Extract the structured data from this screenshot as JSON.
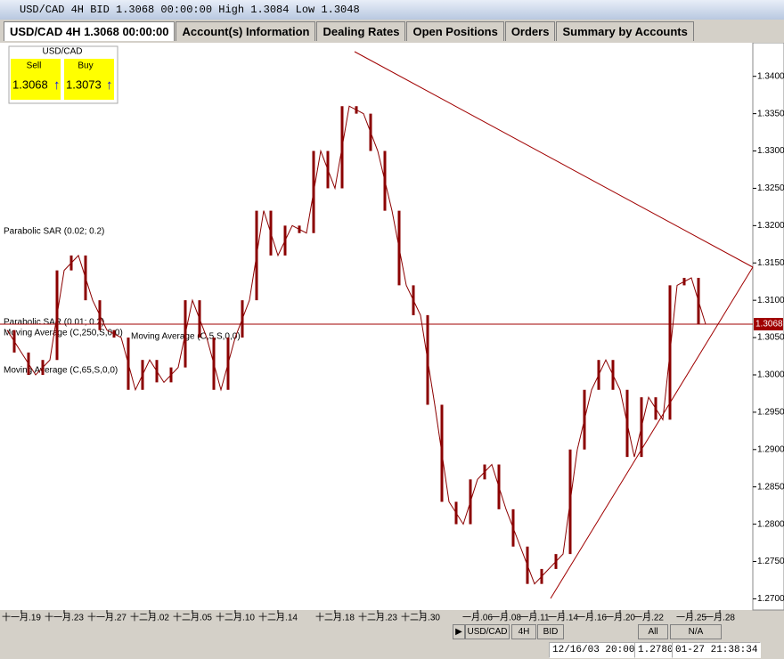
{
  "window": {
    "title": "USD/CAD 4H BID 1.3068 00:00:00 High 1.3084 Low 1.3048"
  },
  "tabs": [
    "USD/CAD 4H 1.3068 00:00:00",
    "Account(s) Information",
    "Dealing Rates",
    "Open Positions",
    "Orders",
    "Summary by Accounts"
  ],
  "quote": {
    "symbol": "USD/CAD",
    "sell_label": "Sell",
    "buy_label": "Buy",
    "sell": "1.3068",
    "buy": "1.3073"
  },
  "chart_data": {
    "type": "line",
    "annotations": [
      "Parabolic SAR (0.02; 0.2)",
      "Parabolic SAR (0.01; 0.2)",
      "Moving Average (C,250,S,0,0)",
      "Moving Average (C,5,S,0,0)",
      "Moving Average (C,65,S,0,0)"
    ],
    "series": [
      {
        "color": "#8b0000",
        "values": [
          1.306,
          1.303,
          1.3,
          1.302,
          1.314,
          1.316,
          1.31,
          1.306,
          1.305,
          1.298,
          1.302,
          1.299,
          1.301,
          1.31,
          1.305,
          1.298,
          1.305,
          1.31,
          1.322,
          1.316,
          1.32,
          1.319,
          1.33,
          1.325,
          1.336,
          1.335,
          1.33,
          1.322,
          1.312,
          1.308,
          1.296,
          1.283,
          1.28,
          1.286,
          1.288,
          1.282,
          1.277,
          1.272,
          1.274,
          1.276,
          1.29,
          1.298,
          1.302,
          1.298,
          1.289,
          1.297,
          1.294,
          1.312,
          1.313,
          1.3068
        ]
      }
    ],
    "current_price": {
      "value": 1.3068,
      "label": "1.3068"
    },
    "ylim": [
      1.2685,
      1.3445
    ],
    "yticks": [
      {
        "value": 1.27,
        "label": "1.2700"
      },
      {
        "value": 1.275,
        "label": "1.2750"
      },
      {
        "value": 1.28,
        "label": "1.2800"
      },
      {
        "value": 1.285,
        "label": "1.2850"
      },
      {
        "value": 1.29,
        "label": "1.2900"
      },
      {
        "value": 1.295,
        "label": "1.2950"
      },
      {
        "value": 1.3,
        "label": "1.3000"
      },
      {
        "value": 1.305,
        "label": "1.3050"
      },
      {
        "value": 1.31,
        "label": "1.3100"
      },
      {
        "value": 1.315,
        "label": "1.3150"
      },
      {
        "value": 1.32,
        "label": "1.3200"
      },
      {
        "value": 1.325,
        "label": "1.3250"
      },
      {
        "value": 1.33,
        "label": "1.3300"
      },
      {
        "value": 1.335,
        "label": "1.3350"
      },
      {
        "value": 1.34,
        "label": "1.3400"
      }
    ],
    "xticks": [
      {
        "value": 1,
        "label": "十一月.19"
      },
      {
        "value": 4,
        "label": "十一月.23"
      },
      {
        "value": 7,
        "label": "十一月.27"
      },
      {
        "value": 10,
        "label": "十二月.02"
      },
      {
        "value": 13,
        "label": "十二月.05"
      },
      {
        "value": 16,
        "label": "十二月.10"
      },
      {
        "value": 19,
        "label": "十二月.14"
      },
      {
        "value": 23,
        "label": "十二月.18"
      },
      {
        "value": 26,
        "label": "十二月.23"
      },
      {
        "value": 29,
        "label": "十二月.30"
      },
      {
        "value": 33,
        "label": "一月.06"
      },
      {
        "value": 35,
        "label": "一月.08"
      },
      {
        "value": 37,
        "label": "一月.11"
      },
      {
        "value": 39,
        "label": "一月.14"
      },
      {
        "value": 41,
        "label": "一月.16"
      },
      {
        "value": 43,
        "label": "一月.20"
      },
      {
        "value": 45,
        "label": "一月.22"
      },
      {
        "value": 48,
        "label": "一月.25"
      },
      {
        "value": 50,
        "label": "一月.28"
      }
    ]
  },
  "toolbar": [
    "USD/CAD",
    "4H",
    "BID",
    "All",
    "N/A"
  ],
  "status": [
    "12/16/03 20:00",
    "1.2780",
    "01-27 21:38:34"
  ]
}
